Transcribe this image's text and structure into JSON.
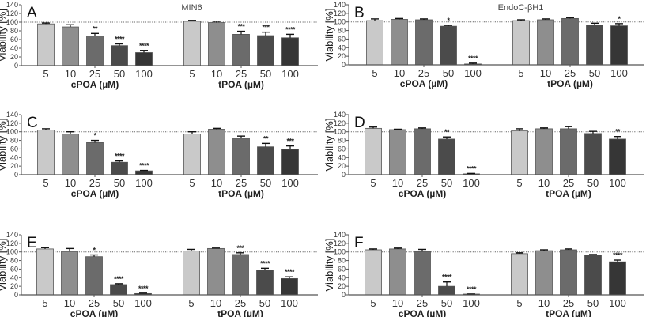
{
  "chart_data": [
    {
      "type": "bar",
      "panel": "A",
      "title": "MIN6",
      "ylabel": "Viability [%]",
      "ylim": [
        0,
        140
      ],
      "yticks": [
        0,
        20,
        40,
        60,
        80,
        100,
        120,
        140
      ],
      "reference_line": 100,
      "groups": [
        {
          "name": "cPOA (µM)",
          "categories": [
            "5",
            "10",
            "25",
            "50",
            "100"
          ],
          "values": [
            96,
            89,
            68,
            46,
            30
          ],
          "errors": [
            2,
            5,
            6,
            4,
            5
          ],
          "significance": [
            "",
            "",
            "**",
            "****",
            "****"
          ]
        },
        {
          "name": "tPOA (µM)",
          "categories": [
            "5",
            "10",
            "25",
            "50",
            "100"
          ],
          "values": [
            102,
            99,
            72,
            69,
            64
          ],
          "errors": [
            2,
            3,
            7,
            8,
            8
          ],
          "significance": [
            "",
            "",
            "***",
            "***",
            "****"
          ]
        }
      ]
    },
    {
      "type": "bar",
      "panel": "B",
      "title": "EndoC-βH1",
      "ylabel": "Viability [%]",
      "ylim": [
        0,
        140
      ],
      "yticks": [
        0,
        20,
        40,
        60,
        80,
        100,
        120,
        140
      ],
      "reference_line": 100,
      "groups": [
        {
          "name": "cPOA (µM)",
          "categories": [
            "5",
            "10",
            "25",
            "50",
            "100"
          ],
          "values": [
            103,
            106,
            105,
            90,
            2
          ],
          "errors": [
            4,
            2,
            2,
            2,
            2
          ],
          "significance": [
            "",
            "",
            "",
            "*",
            "****"
          ]
        },
        {
          "name": "tPOA (µM)",
          "categories": [
            "5",
            "10",
            "25",
            "50",
            "100"
          ],
          "values": [
            103,
            105,
            108,
            93,
            91
          ],
          "errors": [
            2,
            2,
            2,
            4,
            5
          ],
          "significance": [
            "",
            "",
            "",
            "",
            "*"
          ]
        }
      ]
    },
    {
      "type": "bar",
      "panel": "C",
      "title": "",
      "ylabel": "Viability [%]",
      "ylim": [
        0,
        140
      ],
      "yticks": [
        0,
        20,
        40,
        60,
        80,
        100,
        120,
        140
      ],
      "reference_line": 100,
      "groups": [
        {
          "name": "cPOA (µM)",
          "categories": [
            "5",
            "10",
            "25",
            "50",
            "100"
          ],
          "values": [
            104,
            95,
            75,
            29,
            9
          ],
          "errors": [
            3,
            5,
            5,
            3,
            1
          ],
          "significance": [
            "",
            "",
            "*",
            "****",
            "****"
          ]
        },
        {
          "name": "tPOA (µM)",
          "categories": [
            "5",
            "10",
            "25",
            "50",
            "100"
          ],
          "values": [
            95,
            106,
            85,
            65,
            59
          ],
          "errors": [
            5,
            2,
            5,
            8,
            8
          ],
          "significance": [
            "",
            "",
            "",
            "**",
            "***"
          ]
        }
      ]
    },
    {
      "type": "bar",
      "panel": "D",
      "title": "",
      "ylabel": "Viability [%]",
      "ylim": [
        0,
        140
      ],
      "yticks": [
        0,
        20,
        40,
        60,
        80,
        100,
        120,
        140
      ],
      "reference_line": 100,
      "groups": [
        {
          "name": "cPOA (µM)",
          "categories": [
            "5",
            "10",
            "25",
            "50",
            "100"
          ],
          "values": [
            108,
            105,
            107,
            83,
            2
          ],
          "errors": [
            3,
            1,
            2,
            5,
            1
          ],
          "significance": [
            "",
            "",
            "",
            "**",
            "****"
          ]
        },
        {
          "name": "tPOA (µM)",
          "categories": [
            "5",
            "10",
            "25",
            "50",
            "100"
          ],
          "values": [
            102,
            107,
            107,
            96,
            83
          ],
          "errors": [
            5,
            2,
            5,
            5,
            6
          ],
          "significance": [
            "",
            "",
            "",
            "",
            "**"
          ]
        }
      ]
    },
    {
      "type": "bar",
      "panel": "E",
      "title": "",
      "ylabel": "Viability [%]",
      "ylim": [
        0,
        140
      ],
      "yticks": [
        0,
        20,
        40,
        60,
        80,
        100,
        120,
        140
      ],
      "reference_line": 100,
      "groups": [
        {
          "name": "cPOA (µM)",
          "categories": [
            "5",
            "10",
            "25",
            "50",
            "100"
          ],
          "values": [
            107,
            101,
            89,
            24,
            3
          ],
          "errors": [
            3,
            7,
            4,
            2,
            1
          ],
          "significance": [
            "",
            "",
            "*",
            "****",
            "****"
          ]
        },
        {
          "name": "tPOA (µM)",
          "categories": [
            "5",
            "10",
            "25",
            "50",
            "100"
          ],
          "values": [
            102,
            108,
            94,
            58,
            38
          ],
          "errors": [
            4,
            1,
            4,
            4,
            4
          ],
          "significance": [
            "",
            "",
            "***",
            "****",
            "****"
          ]
        }
      ]
    },
    {
      "type": "bar",
      "panel": "F",
      "title": "",
      "ylabel": "Viability [%]",
      "ylim": [
        0,
        140
      ],
      "yticks": [
        0,
        20,
        40,
        60,
        80,
        100,
        120,
        140
      ],
      "reference_line": 100,
      "groups": [
        {
          "name": "cPOA (µM)",
          "categories": [
            "5",
            "10",
            "25",
            "50",
            "100"
          ],
          "values": [
            105,
            107,
            101,
            20,
            1
          ],
          "errors": [
            2,
            2,
            5,
            10,
            1
          ],
          "significance": [
            "",
            "",
            "",
            "****",
            "****"
          ]
        },
        {
          "name": "tPOA (µM)",
          "categories": [
            "5",
            "10",
            "25",
            "50",
            "100"
          ],
          "values": [
            96,
            103,
            105,
            93,
            77
          ],
          "errors": [
            2,
            2,
            2,
            1,
            4
          ],
          "significance": [
            "",
            "",
            "",
            "",
            "****"
          ]
        }
      ]
    }
  ],
  "bar_colors": [
    "#c9c9c9",
    "#8e8e8e",
    "#6b6b6b",
    "#4b4b4b",
    "#363636"
  ],
  "bar_edge_color": "#555555",
  "axis_color": "#555555",
  "reference_line_color": "#666666"
}
